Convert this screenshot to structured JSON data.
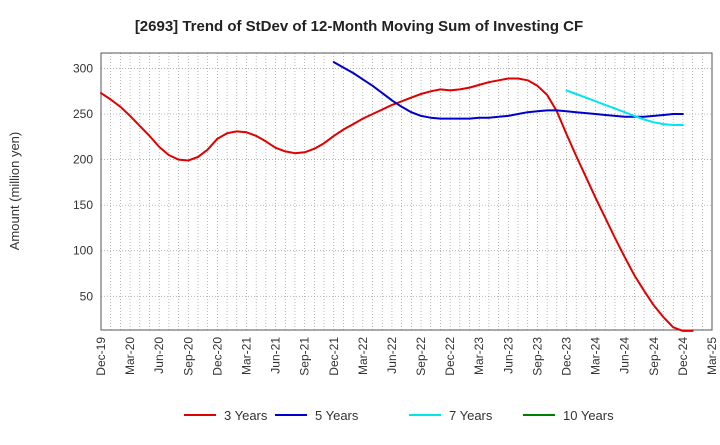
{
  "chart_data": {
    "type": "line",
    "title": "[2693]  Trend of StDev of 12-Month Moving Sum of Investing CF",
    "ylabel": "Amount (million yen)",
    "xlabel": "",
    "ylim": [
      13,
      317
    ],
    "y_ticks": [
      50,
      100,
      150,
      200,
      250,
      300
    ],
    "x_ticks": [
      "Dec-19",
      "Mar-20",
      "Jun-20",
      "Sep-20",
      "Dec-20",
      "Mar-21",
      "Jun-21",
      "Sep-21",
      "Dec-21",
      "Mar-22",
      "Jun-22",
      "Sep-22",
      "Dec-22",
      "Mar-23",
      "Jun-23",
      "Sep-23",
      "Dec-23",
      "Mar-24",
      "Jun-24",
      "Sep-24",
      "Dec-24",
      "Mar-25"
    ],
    "x_months": [
      "2019-12",
      "2020-01",
      "2020-02",
      "2020-03",
      "2020-04",
      "2020-05",
      "2020-06",
      "2020-07",
      "2020-08",
      "2020-09",
      "2020-10",
      "2020-11",
      "2020-12",
      "2021-01",
      "2021-02",
      "2021-03",
      "2021-04",
      "2021-05",
      "2021-06",
      "2021-07",
      "2021-08",
      "2021-09",
      "2021-10",
      "2021-11",
      "2021-12",
      "2022-01",
      "2022-02",
      "2022-03",
      "2022-04",
      "2022-05",
      "2022-06",
      "2022-07",
      "2022-08",
      "2022-09",
      "2022-10",
      "2022-11",
      "2022-12",
      "2023-01",
      "2023-02",
      "2023-03",
      "2023-04",
      "2023-05",
      "2023-06",
      "2023-07",
      "2023-08",
      "2023-09",
      "2023-10",
      "2023-11",
      "2023-12",
      "2024-01",
      "2024-02",
      "2024-03",
      "2024-04",
      "2024-05",
      "2024-06",
      "2024-07",
      "2024-08",
      "2024-09",
      "2024-10",
      "2024-11",
      "2024-12",
      "2025-01",
      "2025-02",
      "2025-03"
    ],
    "grid": true,
    "legend_position": "bottom",
    "series": [
      {
        "name": "3 Years",
        "color": "#e00000",
        "start_index": 0,
        "values": [
          273,
          266,
          258,
          248,
          237,
          226,
          214,
          205,
          200,
          199,
          203,
          211,
          223,
          229,
          231,
          230,
          226,
          220,
          213,
          209,
          207,
          208,
          212,
          218,
          226,
          233,
          239,
          245,
          250,
          255,
          260,
          264,
          268,
          272,
          275,
          277,
          276,
          277,
          279,
          282,
          285,
          287,
          289,
          289,
          287,
          281,
          271,
          253,
          228,
          204,
          181,
          158,
          136,
          114,
          93,
          73,
          56,
          40,
          27,
          16,
          12,
          12
        ]
      },
      {
        "name": "5 Years",
        "color": "#0000cc",
        "start_index": 24,
        "values": [
          307,
          301,
          295,
          288,
          281,
          273,
          265,
          258,
          252,
          248,
          246,
          245,
          245,
          245,
          245,
          246,
          246,
          247,
          248,
          250,
          252,
          253,
          254,
          254,
          253,
          252,
          251,
          250,
          249,
          248,
          247,
          247,
          247,
          248,
          249,
          250,
          250
        ]
      },
      {
        "name": "7 Years",
        "color": "#00e5ee",
        "start_index": 48,
        "values": [
          276,
          272,
          268,
          264,
          260,
          256,
          252,
          248,
          244,
          241,
          239,
          238,
          238
        ]
      },
      {
        "name": "10 Years",
        "color": "#008000",
        "start_index": 0,
        "values": []
      }
    ]
  }
}
